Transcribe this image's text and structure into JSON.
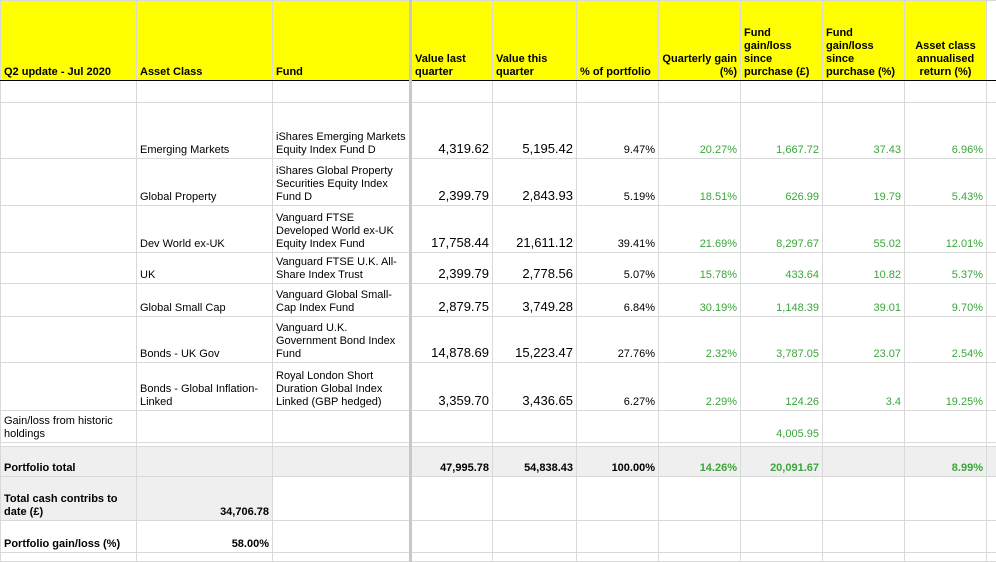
{
  "header": [
    "Q2 update - Jul 2020",
    "Asset Class",
    "Fund",
    "Value last quarter",
    "Value this quarter",
    "% of portfolio",
    "Quarterly gain (%)",
    "Fund gain/loss since purchase (£)",
    "Fund gain/loss since purchase (%)",
    "Asset class annualised return (%)"
  ],
  "rows": [
    [
      null,
      "Emerging Markets",
      "iShares Emerging Markets Equity Index Fund D",
      "4,319.62",
      "5,195.42",
      "9.47%",
      "20.27%",
      "1,667.72",
      "37.43",
      "6.96%"
    ],
    [
      null,
      "Global Property",
      "iShares Global Property Securities Equity Index Fund D",
      "2,399.79",
      "2,843.93",
      "5.19%",
      "18.51%",
      "626.99",
      "19.79",
      "5.43%"
    ],
    [
      null,
      "Dev World ex-UK",
      "Vanguard FTSE Developed World ex-UK Equity Index Fund",
      "17,758.44",
      "21,611.12",
      "39.41%",
      "21.69%",
      "8,297.67",
      "55.02",
      "12.01%"
    ],
    [
      null,
      "UK",
      "Vanguard FTSE U.K. All-Share Index Trust",
      "2,399.79",
      "2,778.56",
      "5.07%",
      "15.78%",
      "433.64",
      "10.82",
      "5.37%"
    ],
    [
      null,
      "Global Small Cap",
      "Vanguard Global Small-Cap Index Fund",
      "2,879.75",
      "3,749.28",
      "6.84%",
      "30.19%",
      "1,148.39",
      "39.01",
      "9.70%"
    ],
    [
      null,
      "Bonds - UK Gov",
      "Vanguard U.K. Government Bond Index Fund",
      "14,878.69",
      "15,223.47",
      "27.76%",
      "2.32%",
      "3,787.05",
      "23.07",
      "2.54%"
    ],
    [
      null,
      "Bonds - Global Inflation-Linked",
      "Royal London Short Duration Global Index Linked (GBP hedged)",
      "3,359.70",
      "3,436.65",
      "6.27%",
      "2.29%",
      "124.26",
      "3.4",
      "19.25%"
    ],
    [
      "Gain/loss from historic holdings",
      null,
      null,
      null,
      null,
      null,
      null,
      "4,005.95",
      null,
      null
    ],
    [
      "Portfolio total",
      null,
      null,
      "47,995.78",
      "54,838.43",
      "100.00%",
      "14.26%",
      "20,091.67",
      null,
      "8.99%"
    ],
    [
      "Total cash contribs to date (£)",
      "34,706.78",
      null,
      null,
      null,
      null,
      null,
      null,
      null,
      null
    ],
    [
      "Portfolio gain/loss (%)",
      "58.00%",
      null,
      null,
      null,
      null,
      null,
      null,
      null,
      null
    ]
  ]
}
